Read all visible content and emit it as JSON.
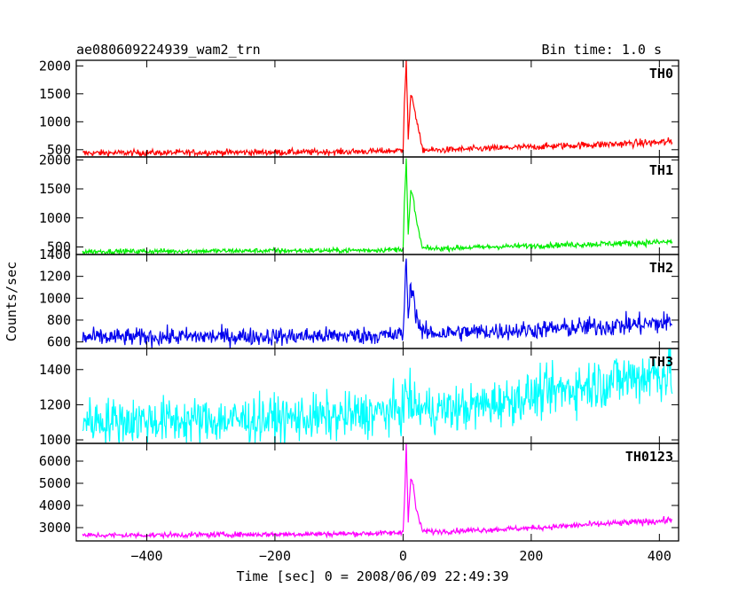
{
  "header": {
    "title": "ae080609224939_wam2_trn",
    "bin_time": "Bin time: 1.0 s"
  },
  "chart_data": {
    "type": "line",
    "title": "ae080609224939_wam2_trn",
    "subtitle": "Bin time: 1.0 s",
    "xlabel": "Time [sec] 0 = 2008/06/09 22:49:39",
    "ylabel": "Counts/sec",
    "xlim": [
      -510,
      430
    ],
    "x_ticks": [
      -400,
      -200,
      0,
      200,
      400
    ],
    "x_tick_labels": [
      "−400",
      "−200",
      "0",
      "200",
      "400"
    ],
    "panels": [
      {
        "label": "TH0",
        "color": "#ff0000",
        "ylim": [
          370,
          2100
        ],
        "y_ticks": [
          500,
          1000,
          1500,
          2000
        ],
        "y_tick_labels": [
          "500",
          "1000",
          "1500",
          "2000"
        ],
        "x": [
          -500,
          -400,
          -300,
          -200,
          -100,
          -50,
          -10,
          0,
          2,
          5,
          8,
          12,
          16,
          20,
          30,
          50,
          100,
          200,
          300,
          400,
          420
        ],
        "y": [
          440,
          445,
          450,
          455,
          460,
          470,
          480,
          500,
          1350,
          2100,
          700,
          1450,
          1350,
          1100,
          500,
          490,
          510,
          550,
          590,
          630,
          640
        ],
        "noise": 28
      },
      {
        "label": "TH1",
        "color": "#00ee00",
        "ylim": [
          370,
          2050
        ],
        "y_ticks": [
          500,
          1000,
          1500,
          2000
        ],
        "y_tick_labels": [
          "500",
          "1000",
          "1500",
          "2000"
        ],
        "x": [
          -500,
          -400,
          -300,
          -200,
          -100,
          -50,
          -10,
          0,
          2,
          5,
          8,
          12,
          16,
          20,
          30,
          50,
          100,
          200,
          300,
          400,
          420
        ],
        "y": [
          420,
          425,
          430,
          435,
          440,
          445,
          455,
          470,
          1250,
          2000,
          700,
          1450,
          1350,
          1000,
          480,
          470,
          490,
          520,
          550,
          580,
          590
        ],
        "noise": 22
      },
      {
        "label": "TH2",
        "color": "#0000ee",
        "ylim": [
          540,
          1400
        ],
        "y_ticks": [
          600,
          800,
          1000,
          1200,
          1400
        ],
        "y_tick_labels": [
          "600",
          "800",
          "1000",
          "1200",
          "1400"
        ],
        "x": [
          -500,
          -400,
          -300,
          -200,
          -100,
          -50,
          -10,
          0,
          2,
          5,
          8,
          12,
          16,
          20,
          30,
          50,
          100,
          200,
          300,
          400,
          420
        ],
        "y": [
          640,
          645,
          650,
          650,
          655,
          660,
          660,
          680,
          930,
          1380,
          800,
          1120,
          1050,
          850,
          690,
          680,
          690,
          710,
          740,
          770,
          780
        ],
        "noise": 40
      },
      {
        "label": "TH3",
        "color": "#00ffff",
        "ylim": [
          980,
          1520
        ],
        "y_ticks": [
          1000,
          1200,
          1400
        ],
        "y_tick_labels": [
          "1000",
          "1200",
          "1400"
        ],
        "x": [
          -500,
          -400,
          -300,
          -200,
          -100,
          -50,
          0,
          5,
          10,
          20,
          50,
          100,
          200,
          300,
          400,
          420
        ],
        "y": [
          1110,
          1110,
          1110,
          1120,
          1130,
          1150,
          1170,
          1280,
          1220,
          1180,
          1170,
          1180,
          1250,
          1320,
          1380,
          1390
        ],
        "noise": 65
      },
      {
        "label": "TH0123",
        "color": "#ff00ff",
        "ylim": [
          2400,
          6800
        ],
        "y_ticks": [
          3000,
          4000,
          5000,
          6000
        ],
        "y_tick_labels": [
          "3000",
          "4000",
          "5000",
          "6000"
        ],
        "x": [
          -500,
          -400,
          -300,
          -200,
          -100,
          -50,
          -10,
          0,
          2,
          5,
          8,
          12,
          16,
          20,
          30,
          50,
          100,
          200,
          300,
          400,
          420
        ],
        "y": [
          2650,
          2660,
          2680,
          2700,
          2720,
          2740,
          2760,
          2800,
          4100,
          6800,
          3300,
          5200,
          4900,
          3900,
          2850,
          2820,
          2870,
          2980,
          3150,
          3300,
          3350
        ],
        "noise": 60
      }
    ]
  }
}
